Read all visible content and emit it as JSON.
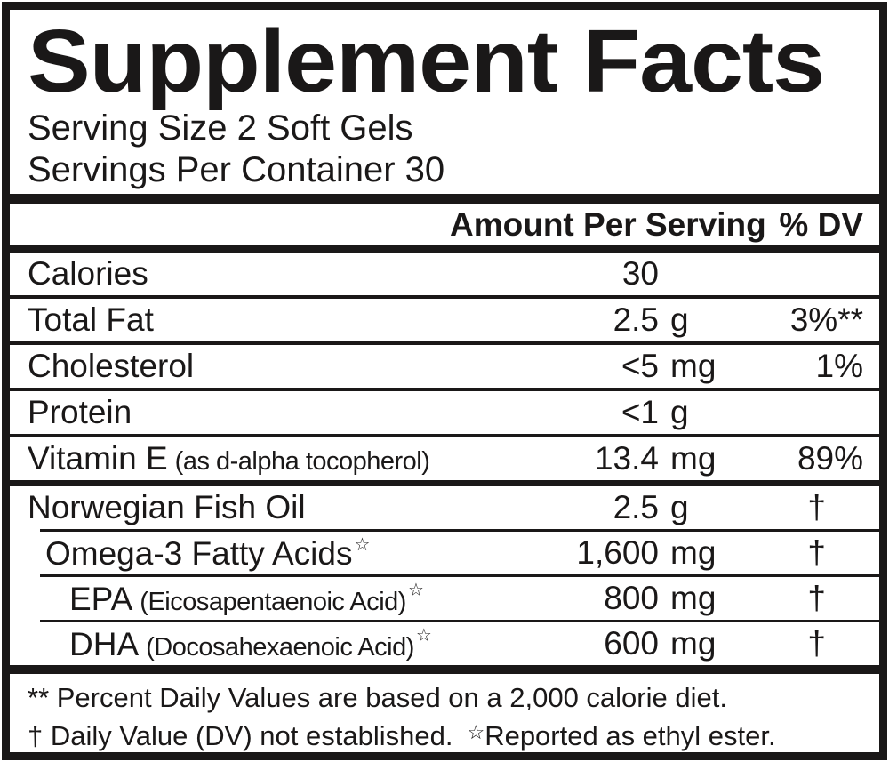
{
  "colors": {
    "ink": "#1a1818",
    "paper": "#ffffff"
  },
  "label": {
    "title": "Supplement Facts",
    "serving_size": "Serving Size 2 Soft Gels",
    "servings_per_container": "Servings Per Container 30",
    "columns": {
      "amount": "Amount Per Serving",
      "dv": "% DV"
    },
    "rows": [
      {
        "name": "Calories",
        "amount": "30",
        "unit": "",
        "dv": ""
      },
      {
        "name": "Total Fat",
        "amount": "2.5",
        "unit": "g",
        "dv": "3%**"
      },
      {
        "name": "Cholesterol",
        "amount": "<5",
        "unit": "mg",
        "dv": "1%"
      },
      {
        "name": "Protein",
        "amount": "<1",
        "unit": "g",
        "dv": ""
      },
      {
        "name": "Vitamin E",
        "detail": "(as d-alpha tocopherol)",
        "amount": "13.4",
        "unit": "mg",
        "dv": "89%"
      },
      {
        "name": "Norwegian Fish Oil",
        "amount": "2.5",
        "unit": "g",
        "dv": "†"
      },
      {
        "name": "Omega-3 Fatty Acids",
        "star": "☆",
        "amount": "1,600",
        "unit": "mg",
        "dv": "†"
      },
      {
        "name": "EPA",
        "detail": "(Eicosapentaenoic Acid)",
        "star": "☆",
        "amount": "800",
        "unit": "mg",
        "dv": "†"
      },
      {
        "name": "DHA",
        "detail": "(Docosahexaenoic Acid)",
        "star": "☆",
        "amount": "600",
        "unit": "mg",
        "dv": "†"
      }
    ],
    "footnote": {
      "line1": "** Percent Daily Values are based on a 2,000 calorie diet.",
      "line2_text": "† Daily Value (DV) not established.",
      "line2_star": "☆",
      "line2_star_text": "Reported as ethyl ester."
    }
  }
}
